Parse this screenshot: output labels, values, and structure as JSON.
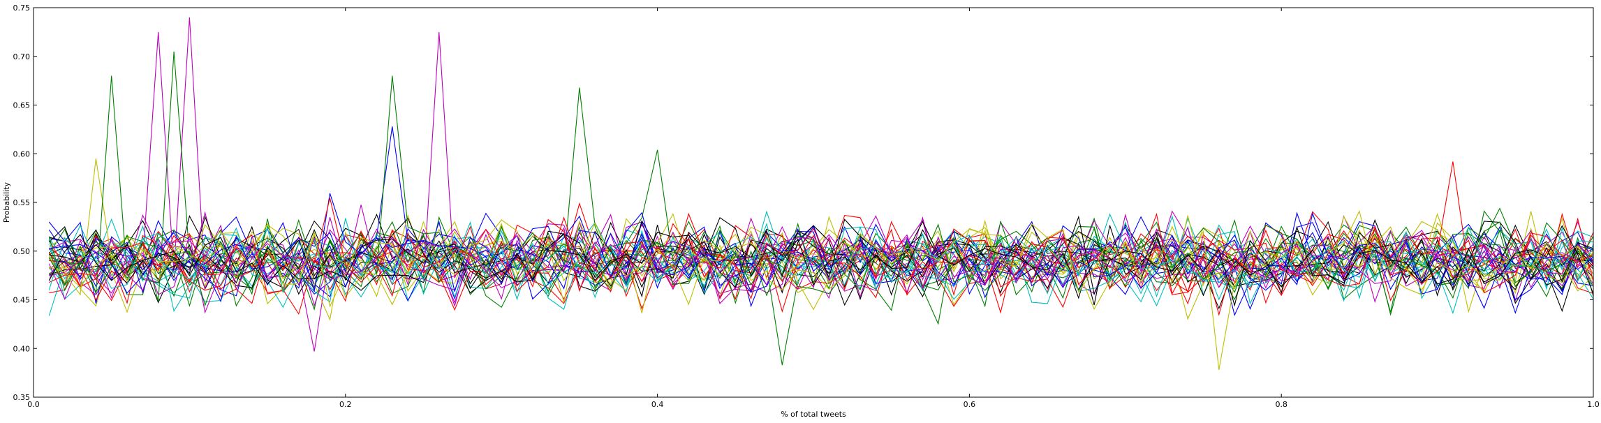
{
  "chart_data": {
    "type": "line",
    "title": "",
    "xlabel": "% of total tweets",
    "ylabel": "Probability",
    "xlim": [
      0.0,
      1.0
    ],
    "ylim": [
      0.35,
      0.75
    ],
    "x_ticks": [
      "0.0",
      "0.2",
      "0.4",
      "0.6",
      "0.8",
      "1.0"
    ],
    "y_ticks": [
      "0.35",
      "0.40",
      "0.45",
      "0.50",
      "0.55",
      "0.60",
      "0.65",
      "0.70",
      "0.75"
    ],
    "grid": false,
    "legend": "none",
    "colors": [
      "#0000ff",
      "#008000",
      "#ff0000",
      "#00bfbf",
      "#bf00bf",
      "#bfbf00",
      "#000000"
    ],
    "series_count": 42,
    "points_per_series": 100,
    "typical_range": [
      0.4,
      0.6
    ],
    "center": 0.49,
    "peaks": [
      {
        "color": "#bf00bf",
        "x": 0.105,
        "y": 0.74
      },
      {
        "color": "#bf00bf",
        "x": 0.08,
        "y": 0.725
      },
      {
        "color": "#bf00bf",
        "x": 0.262,
        "y": 0.725
      },
      {
        "color": "#008000",
        "x": 0.09,
        "y": 0.705
      },
      {
        "color": "#008000",
        "x": 0.055,
        "y": 0.68
      },
      {
        "color": "#008000",
        "x": 0.233,
        "y": 0.68
      },
      {
        "color": "#008000",
        "x": 0.35,
        "y": 0.668
      },
      {
        "color": "#0000ff",
        "x": 0.235,
        "y": 0.628
      },
      {
        "color": "#008000",
        "x": 0.4,
        "y": 0.604
      },
      {
        "color": "#bfbf00",
        "x": 0.043,
        "y": 0.595
      },
      {
        "color": "#ff0000",
        "x": 0.915,
        "y": 0.592
      },
      {
        "color": "#bfbf00",
        "x": 0.758,
        "y": 0.378
      },
      {
        "color": "#008000",
        "x": 0.483,
        "y": 0.383
      },
      {
        "color": "#bf00bf",
        "x": 0.18,
        "y": 0.397
      }
    ]
  }
}
